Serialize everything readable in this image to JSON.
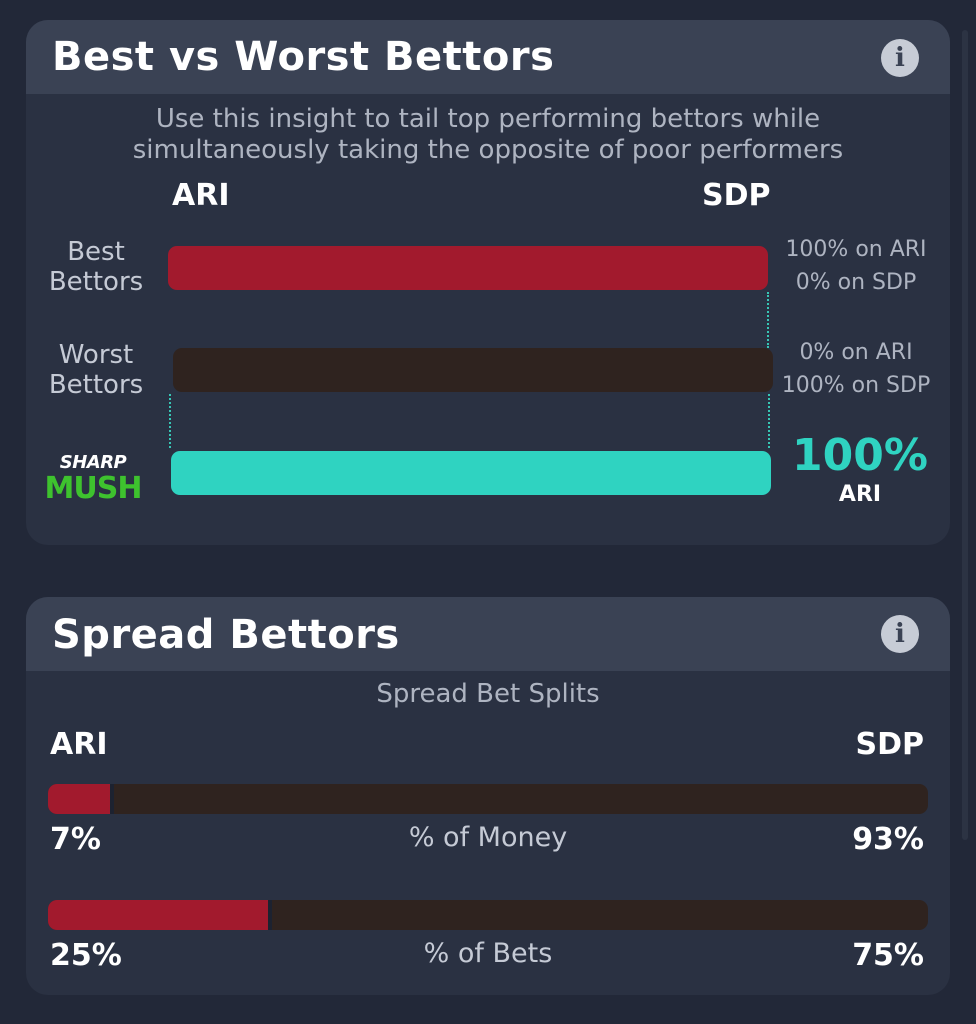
{
  "best_vs_worst": {
    "title": "Best vs Worst Bettors",
    "info_icon": "info-icon",
    "subtitle_line1": "Use this insight to tail top performing bettors while",
    "subtitle_line2": "simultaneously taking the opposite of poor performers",
    "team_left": "ARI",
    "team_right": "SDP",
    "best": {
      "label_line1": "Best",
      "label_line2": "Bettors",
      "side_line1": "100% on ARI",
      "side_line2": "0% on SDP",
      "ari_pct": 100,
      "color": "#a21a2d"
    },
    "worst": {
      "label_line1": "Worst",
      "label_line2": "Bettors",
      "side_line1": "0% on ARI",
      "side_line2": "100% on SDP",
      "sdp_pct": 100,
      "color": "#2f231f"
    },
    "sharp_mush": {
      "logo_line1": "SHARP",
      "logo_line2": "MUSH",
      "pct": "100%",
      "team": "ARI",
      "color": "#2fd3c1"
    }
  },
  "spread": {
    "title": "Spread Bettors",
    "info_icon": "info-icon",
    "subtitle": "Spread Bet Splits",
    "team_left": "ARI",
    "team_right": "SDP",
    "money": {
      "label": "% of Money",
      "left": "7%",
      "right": "93%",
      "left_fraction": 0.07
    },
    "bets": {
      "label": "% of Bets",
      "left": "25%",
      "right": "75%",
      "left_fraction": 0.25
    },
    "colors": {
      "ari": "#a21a2d",
      "sdp": "#2f231f"
    }
  }
}
